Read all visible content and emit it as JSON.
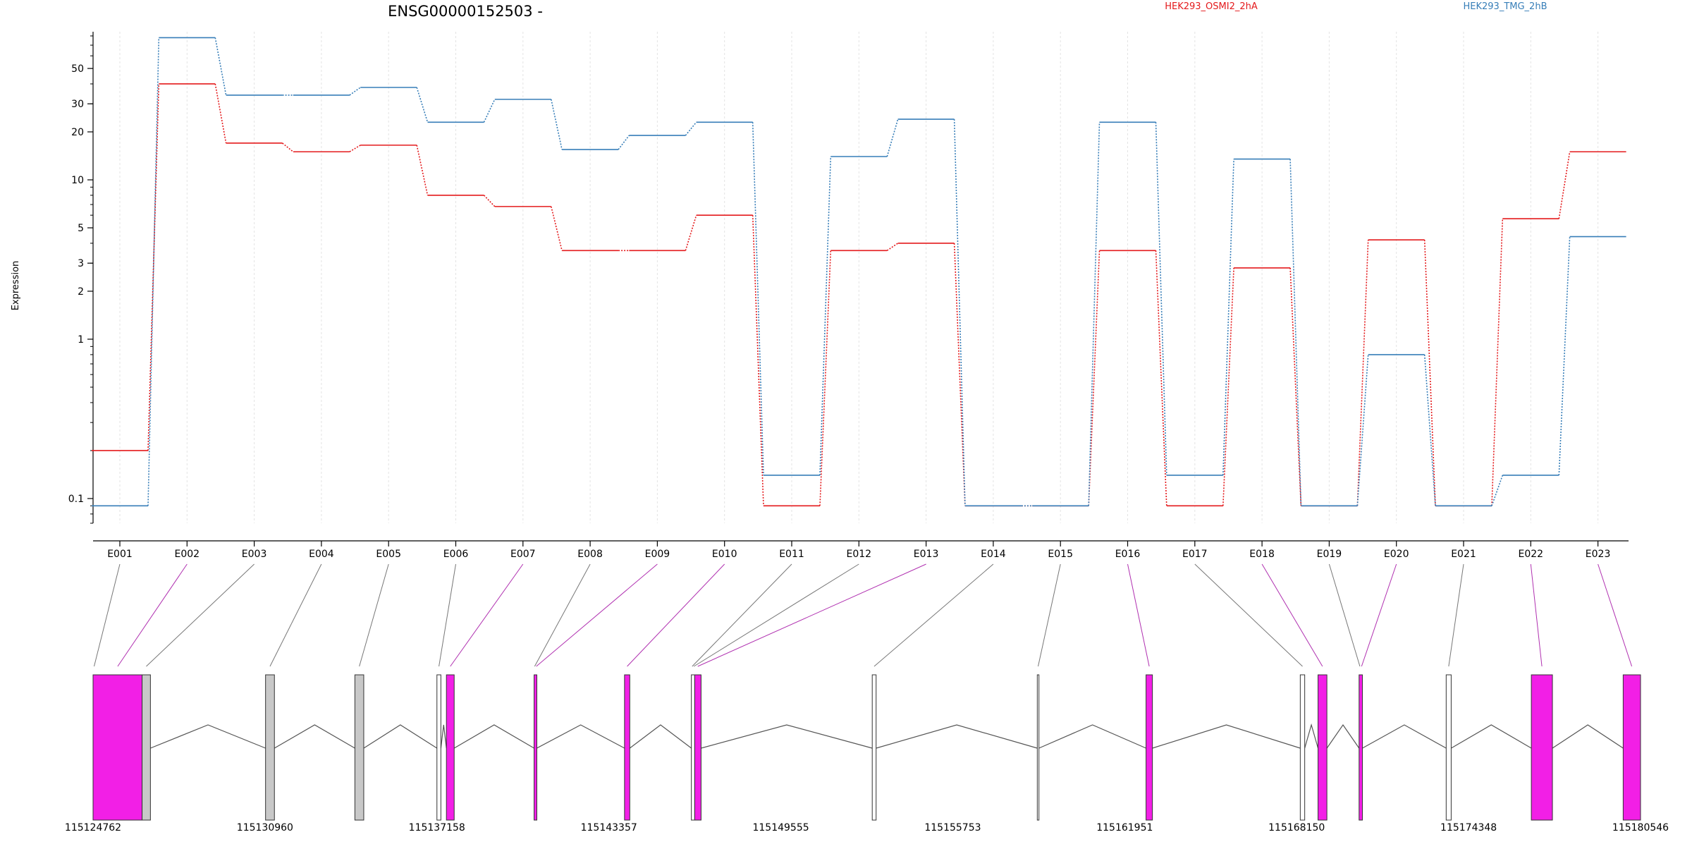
{
  "chart_data": {
    "type": "line",
    "title": "ENSG00000152503 -",
    "ylabel": "Expression",
    "yscale": "log",
    "ylim": [
      0.07,
      85
    ],
    "yticks": [
      0.1,
      1,
      2,
      3,
      5,
      10,
      20,
      30,
      50
    ],
    "ytick_labels": [
      "0.1",
      "1",
      "2",
      "3",
      "5",
      "10",
      "20",
      "30",
      "50"
    ],
    "categories": [
      "E001",
      "E002",
      "E003",
      "E004",
      "E005",
      "E006",
      "E007",
      "E008",
      "E009",
      "E010",
      "E011",
      "E012",
      "E013",
      "E014",
      "E015",
      "E016",
      "E017",
      "E018",
      "E019",
      "E020",
      "E021",
      "E022",
      "E023"
    ],
    "series": [
      {
        "name": "HEK293_OSMI2_2hA",
        "color": "#e41a1c",
        "values": [
          0.2,
          40,
          17,
          15,
          16.5,
          8,
          6.8,
          3.6,
          3.6,
          6,
          0.09,
          3.6,
          4,
          0.09,
          0.09,
          3.6,
          0.09,
          2.8,
          0.09,
          4.2,
          0.09,
          5.7,
          15
        ]
      },
      {
        "name": "HEK293_TMG_2hB",
        "color": "#377eb8",
        "values": [
          0.09,
          78,
          34,
          34,
          38,
          23,
          32,
          15.5,
          19,
          23,
          0.14,
          14,
          24,
          0.09,
          0.09,
          23,
          0.14,
          13.5,
          0.09,
          0.8,
          0.09,
          0.14,
          4.4
        ]
      }
    ],
    "gene_model": {
      "coordinates": [
        "115124762",
        "115130960",
        "115137158",
        "115143357",
        "115149555",
        "115155753",
        "115161951",
        "115168150",
        "115174348",
        "115180546"
      ],
      "exon_highlight_color": "#f21fe6",
      "exon_gray_color": "#c8c8c8",
      "exons": [
        {
          "start": 115124762,
          "end": 115126530,
          "style": "magenta"
        },
        {
          "start": 115126530,
          "end": 115126830,
          "style": "gray"
        },
        {
          "start": 115130980,
          "end": 115131300,
          "style": "gray"
        },
        {
          "start": 115134200,
          "end": 115134520,
          "style": "gray"
        },
        {
          "start": 115137158,
          "end": 115137300,
          "style": "white"
        },
        {
          "start": 115137500,
          "end": 115137780,
          "style": "magenta"
        },
        {
          "start": 115140660,
          "end": 115140760,
          "style": "magenta"
        },
        {
          "start": 115143920,
          "end": 115144110,
          "style": "magenta"
        },
        {
          "start": 115146330,
          "end": 115146450,
          "style": "white"
        },
        {
          "start": 115146450,
          "end": 115146680,
          "style": "magenta"
        },
        {
          "start": 115152850,
          "end": 115152990,
          "style": "white"
        },
        {
          "start": 115158800,
          "end": 115158860,
          "style": "white"
        },
        {
          "start": 115162720,
          "end": 115162950,
          "style": "magenta"
        },
        {
          "start": 115168280,
          "end": 115168440,
          "style": "white"
        },
        {
          "start": 115168920,
          "end": 115169240,
          "style": "magenta"
        },
        {
          "start": 115170400,
          "end": 115170520,
          "style": "magenta"
        },
        {
          "start": 115173540,
          "end": 115173720,
          "style": "white"
        },
        {
          "start": 115176610,
          "end": 115177370,
          "style": "magenta"
        },
        {
          "start": 115179920,
          "end": 115180546,
          "style": "magenta"
        }
      ],
      "exon_links": [
        {
          "bin": "E001",
          "pos": 115124800,
          "highlight": false
        },
        {
          "bin": "E002",
          "pos": 115125650,
          "highlight": true
        },
        {
          "bin": "E003",
          "pos": 115126680,
          "highlight": false
        },
        {
          "bin": "E004",
          "pos": 115131140,
          "highlight": false
        },
        {
          "bin": "E005",
          "pos": 115134360,
          "highlight": false
        },
        {
          "bin": "E006",
          "pos": 115137230,
          "highlight": false
        },
        {
          "bin": "E007",
          "pos": 115137640,
          "highlight": true
        },
        {
          "bin": "E008",
          "pos": 115140680,
          "highlight": false
        },
        {
          "bin": "E009",
          "pos": 115140740,
          "highlight": true
        },
        {
          "bin": "E010",
          "pos": 115144015,
          "highlight": true
        },
        {
          "bin": "E011",
          "pos": 115146360,
          "highlight": false
        },
        {
          "bin": "E012",
          "pos": 115146420,
          "highlight": false
        },
        {
          "bin": "E013",
          "pos": 115146560,
          "highlight": true
        },
        {
          "bin": "E014",
          "pos": 115152920,
          "highlight": false
        },
        {
          "bin": "E015",
          "pos": 115158830,
          "highlight": false
        },
        {
          "bin": "E016",
          "pos": 115162835,
          "highlight": true
        },
        {
          "bin": "E017",
          "pos": 115168360,
          "highlight": false
        },
        {
          "bin": "E018",
          "pos": 115169080,
          "highlight": true
        },
        {
          "bin": "E019",
          "pos": 115170430,
          "highlight": false
        },
        {
          "bin": "E020",
          "pos": 115170490,
          "highlight": true
        },
        {
          "bin": "E021",
          "pos": 115173630,
          "highlight": false
        },
        {
          "bin": "E022",
          "pos": 115176990,
          "highlight": true
        },
        {
          "bin": "E023",
          "pos": 115180230,
          "highlight": true
        }
      ]
    }
  }
}
